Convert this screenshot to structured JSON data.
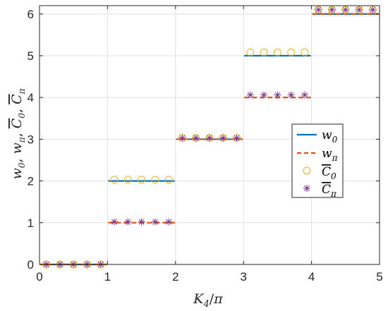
{
  "chart_data": {
    "type": "line",
    "xlabel": "K_4/π",
    "ylabel": "w_0, w_π, C̄_0, C̄_π",
    "xlim": [
      0,
      5
    ],
    "ylim": [
      0,
      6.2
    ],
    "xticks": [
      "0",
      "1",
      "2",
      "3",
      "4",
      "5"
    ],
    "yticks": [
      "0",
      "1",
      "2",
      "3",
      "4",
      "5",
      "6"
    ],
    "grid": true,
    "legend_position": "right",
    "colors": {
      "w0": "#0072BD",
      "wpi": "#D95319",
      "C0": "#EDB120",
      "Cpi": "#7E2F8E"
    },
    "series": [
      {
        "name": "w0",
        "style": "solid-line",
        "segments": [
          {
            "x": [
              0,
              1
            ],
            "y": 0
          },
          {
            "x": [
              1,
              2
            ],
            "y": 2
          },
          {
            "x": [
              2,
              3
            ],
            "y": 3
          },
          {
            "x": [
              3,
              4
            ],
            "y": 5
          },
          {
            "x": [
              4,
              5
            ],
            "y": 6
          }
        ]
      },
      {
        "name": "wπ",
        "style": "dashed-line",
        "segments": [
          {
            "x": [
              0,
              1
            ],
            "y": 0
          },
          {
            "x": [
              1,
              2
            ],
            "y": 1
          },
          {
            "x": [
              2,
              3
            ],
            "y": 3
          },
          {
            "x": [
              3,
              4
            ],
            "y": 4
          },
          {
            "x": [
              4,
              5
            ],
            "y": 6
          }
        ]
      },
      {
        "name": "C̄0",
        "style": "circle-marker",
        "points": [
          [
            0.1,
            0
          ],
          [
            0.3,
            0
          ],
          [
            0.5,
            0
          ],
          [
            0.7,
            0
          ],
          [
            0.9,
            0
          ],
          [
            1.1,
            2.03
          ],
          [
            1.3,
            2.03
          ],
          [
            1.5,
            2.03
          ],
          [
            1.7,
            2.03
          ],
          [
            1.9,
            2.03
          ],
          [
            2.1,
            3.03
          ],
          [
            2.3,
            3.03
          ],
          [
            2.5,
            3.03
          ],
          [
            2.7,
            3.03
          ],
          [
            2.9,
            3.03
          ],
          [
            3.1,
            5.08
          ],
          [
            3.3,
            5.08
          ],
          [
            3.5,
            5.08
          ],
          [
            3.7,
            5.08
          ],
          [
            3.9,
            5.08
          ],
          [
            4.1,
            6.1
          ],
          [
            4.3,
            6.1
          ],
          [
            4.5,
            6.1
          ],
          [
            4.7,
            6.1
          ],
          [
            4.9,
            6.1
          ]
        ]
      },
      {
        "name": "C̄π",
        "style": "asterisk-marker",
        "points": [
          [
            0.1,
            0
          ],
          [
            0.3,
            0
          ],
          [
            0.5,
            0
          ],
          [
            0.7,
            0
          ],
          [
            0.9,
            0
          ],
          [
            1.1,
            1.02
          ],
          [
            1.3,
            1.02
          ],
          [
            1.5,
            1.02
          ],
          [
            1.7,
            1.02
          ],
          [
            1.9,
            1.02
          ],
          [
            2.1,
            3.03
          ],
          [
            2.3,
            3.03
          ],
          [
            2.5,
            3.03
          ],
          [
            2.7,
            3.03
          ],
          [
            2.9,
            3.03
          ],
          [
            3.1,
            4.06
          ],
          [
            3.3,
            4.06
          ],
          [
            3.5,
            4.06
          ],
          [
            3.7,
            4.06
          ],
          [
            3.9,
            4.06
          ],
          [
            4.1,
            6.1
          ],
          [
            4.3,
            6.1
          ],
          [
            4.5,
            6.1
          ],
          [
            4.7,
            6.1
          ],
          [
            4.9,
            6.1
          ]
        ]
      }
    ],
    "legend": {
      "entries": [
        "w0",
        "wπ",
        "C̄0",
        "C̄π"
      ]
    }
  }
}
